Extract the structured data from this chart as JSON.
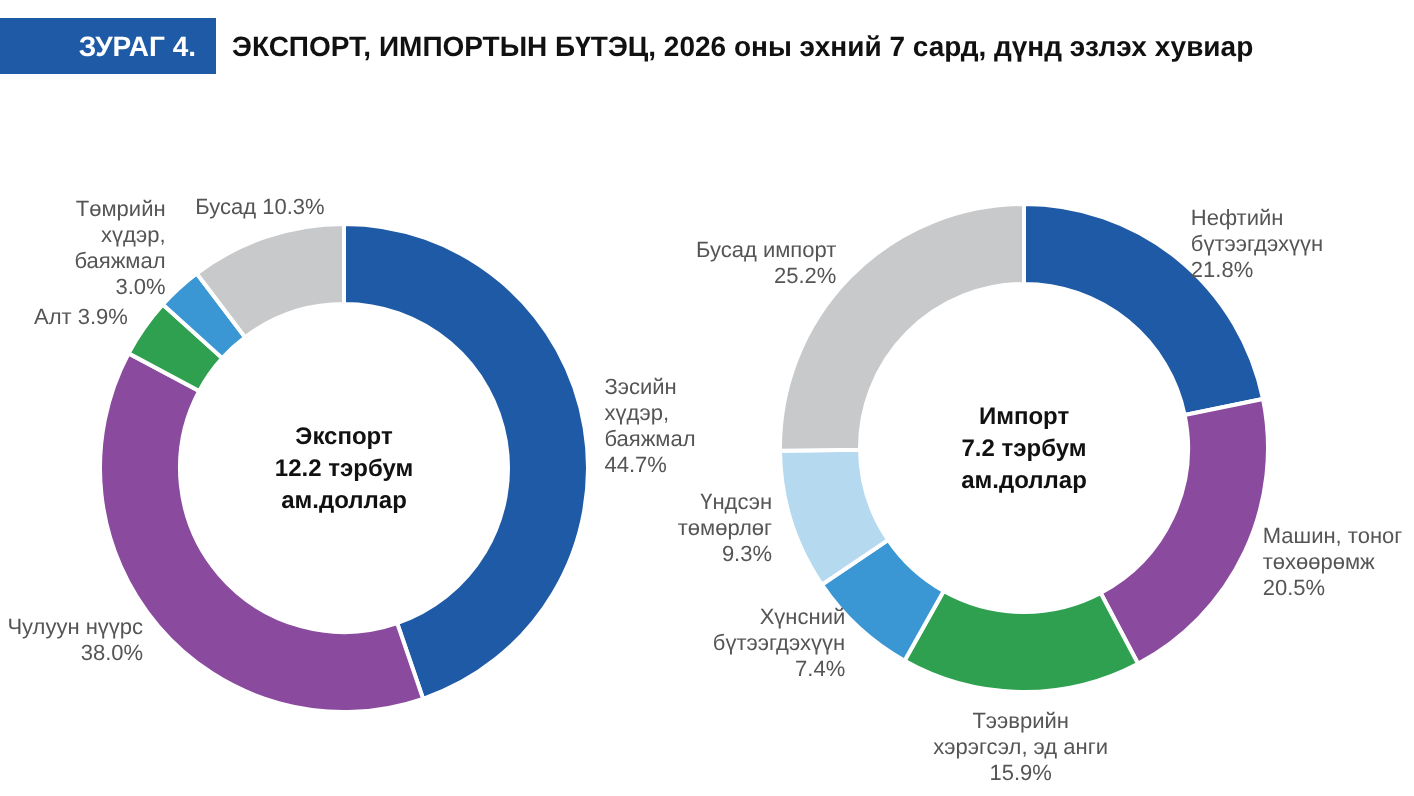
{
  "chart_data": [
    {
      "type": "donut",
      "title": "Экспорт\n12.2 тэрбум\nам.доллар",
      "annotations": [
        "ЗУРАГ 4.",
        "ЭКСПОРТ, ИМПОРТЫН БҮТЭЦ, 2026 оны эхний 7 сард, дүнд эзлэх хувиар"
      ],
      "categories": [
        "Зэсийн\nхүдэр,\nбаяжмал",
        "Чулуун нүүрс",
        "Алт",
        "Төмрийн\nхүдэр,\nбаяжмал",
        "Бусад"
      ],
      "values": [
        44.7,
        38.0,
        3.9,
        3.0,
        10.3
      ],
      "value_labels": [
        "44.7%",
        "38.0%",
        "3.9%",
        "3.0%",
        "10.3%"
      ],
      "colors": [
        "#1f5aa6",
        "#8a4a9e",
        "#2ea04f",
        "#3a97d4",
        "#c8c9cb"
      ]
    },
    {
      "type": "donut",
      "title": "Импорт\n7.2 тэрбум\nам.доллар",
      "categories": [
        "Нефтийн\nбүтээгдэхүүн",
        "Машин, тоног\nтөхөөрөмж",
        "Тээврийн\nхэрэгсэл, эд анги",
        "Хүнсний\nбүтээгдэхүүн",
        "Үндсэн\nтөмөрлөг",
        "Бусад импорт"
      ],
      "values": [
        21.8,
        20.5,
        15.9,
        7.4,
        9.3,
        25.2
      ],
      "value_labels": [
        "21.8%",
        "20.5%",
        "15.9%",
        "7.4%",
        "9.3%",
        "25.2%"
      ],
      "colors": [
        "#1f5aa6",
        "#8a4a9e",
        "#2ea04f",
        "#3a97d4",
        "#b5d9ef",
        "#c8c9cb"
      ]
    }
  ]
}
